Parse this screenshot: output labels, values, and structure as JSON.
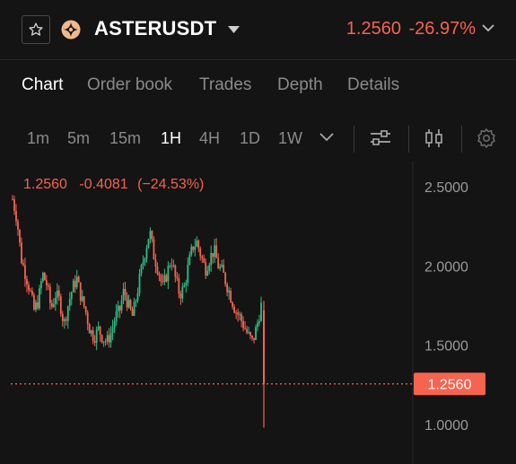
{
  "header": {
    "symbol": "ASTERUSDT",
    "price": "1.2560",
    "change": "-26.97%",
    "colors": {
      "down": "#f6634f",
      "up": "#2ebd85",
      "accent": "#f6634f"
    },
    "icons": [
      "star-icon",
      "asset-logo-icon",
      "chevron-down-icon"
    ]
  },
  "tabs": [
    "Chart",
    "Order book",
    "Trades",
    "Depth",
    "Details"
  ],
  "active_tab": "Chart",
  "intervals": [
    "1m",
    "5m",
    "15m",
    "1H",
    "4H",
    "1D",
    "1W"
  ],
  "active_interval": "1H",
  "toolbar_icons": [
    "interval-dropdown-icon",
    "indicator-settings-icon",
    "candlestick-type-icon",
    "settings-gear-icon"
  ],
  "chart": {
    "legend_price": "1.2560",
    "legend_change": "-0.4081",
    "legend_pct": "(−24.53%)",
    "y_ticks": [
      "2.5000",
      "2.0000",
      "1.5000",
      "1.0000"
    ],
    "last_price_label": "1.2560"
  },
  "chart_data": {
    "type": "candlestick",
    "interval": "1H",
    "ylim": [
      0.8,
      2.6
    ],
    "y_ticks": [
      2.5,
      2.0,
      1.5,
      1.0
    ],
    "last_price": 1.256,
    "change": -0.4081,
    "change_pct": -24.53,
    "close_trace": [
      2.42,
      2.3,
      2.05,
      1.95,
      1.85,
      1.72,
      1.78,
      1.95,
      1.88,
      1.73,
      1.82,
      1.78,
      1.63,
      1.76,
      1.86,
      1.92,
      1.8,
      1.72,
      1.6,
      1.55,
      1.6,
      1.55,
      1.52,
      1.58,
      1.68,
      1.72,
      1.85,
      1.75,
      1.68,
      1.82,
      1.97,
      2.1,
      2.22,
      2.06,
      1.98,
      1.86,
      1.95,
      2.05,
      1.92,
      1.82,
      1.86,
      2.0,
      2.12,
      2.15,
      2.06,
      1.98,
      2.05,
      2.1,
      2.0,
      1.96,
      1.88,
      1.8,
      1.72,
      1.68,
      1.62,
      1.56,
      1.52,
      1.62,
      1.75,
      1.256
    ],
    "last_candle": {
      "open": 1.72,
      "high": 1.78,
      "low": 0.98,
      "close": 1.256
    }
  }
}
